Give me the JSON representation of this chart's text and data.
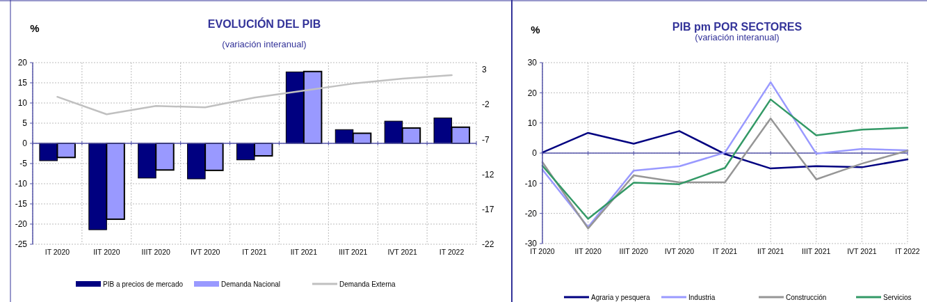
{
  "chart_data": [
    {
      "type": "bar",
      "title": "EVOLUCIÓN DEL PIB",
      "subtitle": "(variación interanual)",
      "ylabel": "%",
      "categories": [
        "IT 2020",
        "IIT 2020",
        "IIIT 2020",
        "IVT 2020",
        "IT 2021",
        "IIT 2021",
        "IIIT 2021",
        "IVT 2021",
        "IT 2022"
      ],
      "series": [
        {
          "name": "PIB a precios de mercado",
          "color": "#000080",
          "values": [
            -4.3,
            -21.4,
            -8.6,
            -8.8,
            -4.1,
            17.7,
            3.4,
            5.5,
            6.3
          ]
        },
        {
          "name": "Demanda Nacional",
          "color": "#9999ff",
          "values": [
            -3.5,
            -18.8,
            -6.6,
            -6.7,
            -3.1,
            17.8,
            2.5,
            3.8,
            4.0
          ]
        },
        {
          "name": "Demanda Externa",
          "type": "line",
          "axis": "y2",
          "color": "#c0c0c0",
          "values": [
            -0.9,
            -3.4,
            -2.2,
            -2.4,
            -1.0,
            0.0,
            1.0,
            1.7,
            2.2
          ]
        }
      ],
      "ylim": [
        -25,
        20
      ],
      "yticks": [
        -25,
        -20,
        -15,
        -10,
        -5,
        0,
        5,
        10,
        15,
        20
      ],
      "y2lim": [
        -22,
        4
      ],
      "y2ticks": [
        -22,
        -17,
        -12,
        -7,
        -2,
        3
      ],
      "ref_lines": [
        {
          "axis": "y",
          "value": 0,
          "color": "#5555aa"
        }
      ],
      "grid": true,
      "legend": "bottom"
    },
    {
      "type": "line",
      "title": "PIB pm POR SECTORES",
      "subtitle": "(variación interanual)",
      "ylabel": "%",
      "categories": [
        "IT 2020",
        "IIT 2020",
        "IIIT 2020",
        "IVT 2020",
        "IT 2021",
        "IIT 2021",
        "IIIT 2021",
        "IVT 2021",
        "IT 2022"
      ],
      "series": [
        {
          "name": "Agraria y pesquera",
          "color": "#000080",
          "values": [
            0.2,
            6.7,
            3.1,
            7.3,
            -0.3,
            -5.1,
            -4.3,
            -4.7,
            -2.1
          ]
        },
        {
          "name": "Industria",
          "color": "#9999ff",
          "values": [
            -5.5,
            -24.5,
            -5.8,
            -4.4,
            0.2,
            23.5,
            -0.2,
            1.4,
            0.9
          ]
        },
        {
          "name": "Construcción",
          "color": "#969696",
          "values": [
            -3.0,
            -25.0,
            -7.4,
            -9.7,
            -9.7,
            11.5,
            -8.7,
            -3.5,
            0.8
          ]
        },
        {
          "name": "Servicios",
          "color": "#339966",
          "values": [
            -4.2,
            -21.8,
            -9.8,
            -10.3,
            -4.9,
            17.8,
            5.9,
            7.8,
            8.4
          ]
        }
      ],
      "ylim": [
        -30,
        30
      ],
      "yticks": [
        -30,
        -20,
        -10,
        0,
        10,
        20,
        30
      ],
      "ref_lines": [
        {
          "axis": "y",
          "value": 0,
          "color": "#5555aa"
        }
      ],
      "grid": true,
      "legend": "bottom"
    }
  ]
}
